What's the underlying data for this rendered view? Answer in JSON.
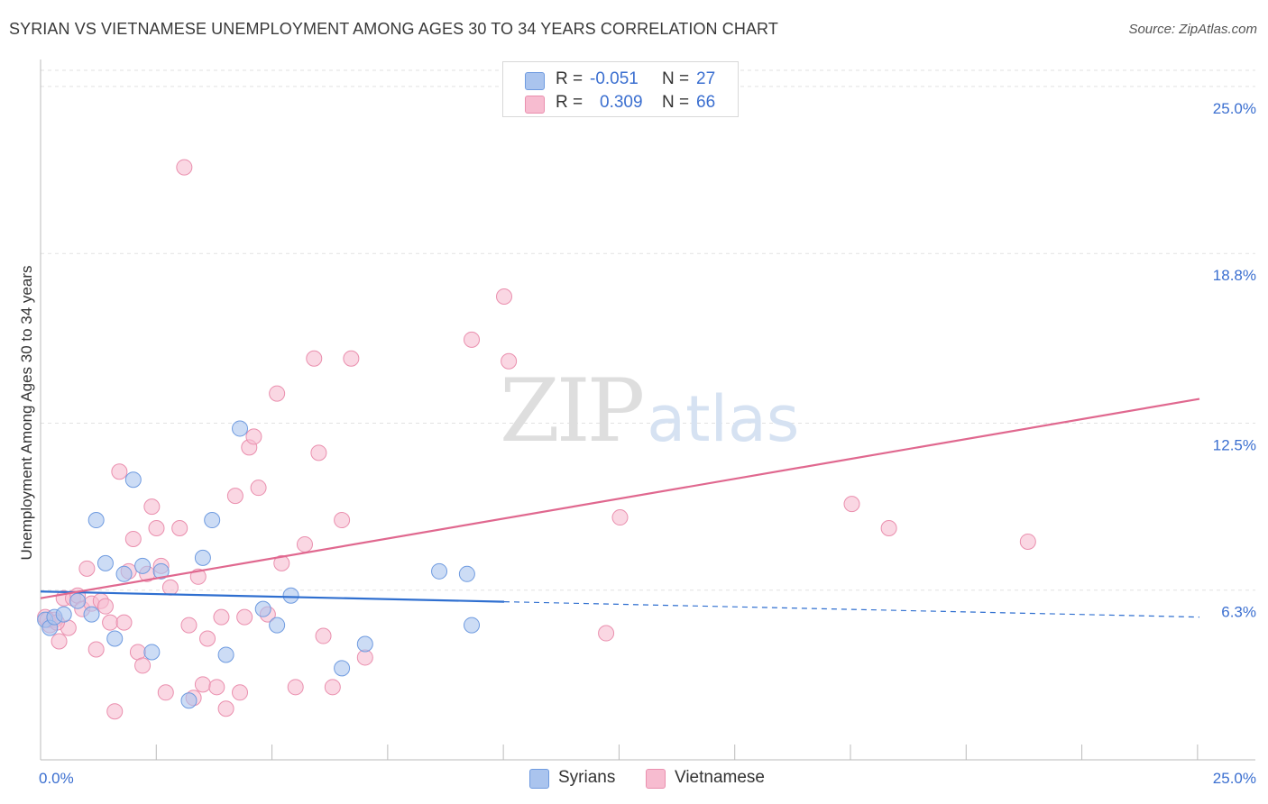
{
  "header": {
    "title": "SYRIAN VS VIETNAMESE UNEMPLOYMENT AMONG AGES 30 TO 34 YEARS CORRELATION CHART",
    "source": "Source: ZipAtlas.com"
  },
  "watermark": {
    "zip": "ZIP",
    "atlas": "atlas"
  },
  "legend": {
    "syrians": {
      "r_label": "R =",
      "r_value": "-0.051",
      "n_label": "N =",
      "n_value": "27"
    },
    "vietnamese": {
      "r_label": "R =",
      "r_value": "0.309",
      "n_label": "N =",
      "n_value": "66"
    }
  },
  "bottom_legend": {
    "syrians": "Syrians",
    "vietnamese": "Vietnamese"
  },
  "colors": {
    "syrians_fill": "#aac4ee",
    "syrians_stroke": "#6f9be0",
    "syrians_line": "#2f6fd0",
    "vietnamese_fill": "#f7bcd0",
    "vietnamese_stroke": "#ea8fae",
    "vietnamese_line": "#e0688f",
    "axis_value": "#3b6fd0",
    "grid": "#e2e2e2"
  },
  "chart_data": {
    "type": "scatter",
    "title": "SYRIAN VS VIETNAMESE UNEMPLOYMENT AMONG AGES 30 TO 34 YEARS CORRELATION CHART",
    "xlabel": "",
    "ylabel": "Unemployment Among Ages 30 to 34 years",
    "xlim": [
      0,
      25
    ],
    "ylim": [
      0,
      25.6
    ],
    "x_tick_labels": [
      "0.0%",
      "25.0%"
    ],
    "y_ticks": [
      6.3,
      12.5,
      18.8,
      25.0
    ],
    "y_tick_labels": [
      "6.3%",
      "12.5%",
      "18.8%",
      "25.0%"
    ],
    "grid": true,
    "series": [
      {
        "name": "Syrians",
        "r": -0.051,
        "n": 27,
        "points": [
          [
            0.1,
            5.2
          ],
          [
            0.2,
            4.9
          ],
          [
            0.3,
            5.3
          ],
          [
            0.5,
            5.4
          ],
          [
            0.8,
            5.9
          ],
          [
            1.1,
            5.4
          ],
          [
            1.2,
            8.9
          ],
          [
            1.4,
            7.3
          ],
          [
            1.6,
            4.5
          ],
          [
            1.8,
            6.9
          ],
          [
            2.0,
            10.4
          ],
          [
            2.2,
            7.2
          ],
          [
            2.4,
            4.0
          ],
          [
            2.6,
            7.0
          ],
          [
            3.2,
            2.2
          ],
          [
            3.5,
            7.5
          ],
          [
            3.7,
            8.9
          ],
          [
            4.0,
            3.9
          ],
          [
            4.3,
            12.3
          ],
          [
            4.8,
            5.6
          ],
          [
            5.1,
            5.0
          ],
          [
            5.4,
            6.1
          ],
          [
            6.5,
            3.4
          ],
          [
            7.0,
            4.3
          ],
          [
            8.6,
            7.0
          ],
          [
            9.2,
            6.9
          ],
          [
            9.3,
            5.0
          ]
        ],
        "trend": {
          "x0": 0,
          "y0": 6.25,
          "x1": 10,
          "y1": 5.87,
          "dash_to_x": 25,
          "dash_to_y": 5.3
        }
      },
      {
        "name": "Vietnamese",
        "r": 0.309,
        "n": 66,
        "points": [
          [
            0.1,
            5.3
          ],
          [
            0.2,
            5.0
          ],
          [
            0.3,
            5.2
          ],
          [
            0.4,
            4.4
          ],
          [
            0.5,
            6.0
          ],
          [
            0.6,
            4.9
          ],
          [
            0.7,
            6.0
          ],
          [
            0.8,
            6.1
          ],
          [
            0.9,
            5.6
          ],
          [
            1.0,
            7.1
          ],
          [
            1.1,
            5.8
          ],
          [
            1.2,
            4.1
          ],
          [
            1.3,
            5.9
          ],
          [
            1.4,
            5.7
          ],
          [
            1.5,
            5.1
          ],
          [
            1.6,
            1.8
          ],
          [
            1.7,
            10.7
          ],
          [
            1.8,
            5.1
          ],
          [
            1.9,
            7.0
          ],
          [
            2.0,
            8.2
          ],
          [
            2.1,
            4.0
          ],
          [
            2.2,
            3.5
          ],
          [
            2.3,
            6.9
          ],
          [
            2.4,
            9.4
          ],
          [
            2.5,
            8.6
          ],
          [
            2.6,
            7.2
          ],
          [
            2.7,
            2.5
          ],
          [
            2.8,
            6.4
          ],
          [
            3.0,
            8.6
          ],
          [
            3.1,
            22.0
          ],
          [
            3.2,
            5.0
          ],
          [
            3.3,
            2.3
          ],
          [
            3.4,
            6.8
          ],
          [
            3.5,
            2.8
          ],
          [
            3.6,
            4.5
          ],
          [
            3.8,
            2.7
          ],
          [
            3.9,
            5.3
          ],
          [
            4.0,
            1.9
          ],
          [
            4.2,
            9.8
          ],
          [
            4.3,
            2.5
          ],
          [
            4.4,
            5.3
          ],
          [
            4.5,
            11.6
          ],
          [
            4.6,
            12.0
          ],
          [
            4.7,
            10.1
          ],
          [
            4.9,
            5.4
          ],
          [
            5.1,
            13.6
          ],
          [
            5.2,
            7.3
          ],
          [
            5.5,
            2.7
          ],
          [
            5.7,
            8.0
          ],
          [
            5.9,
            14.9
          ],
          [
            6.0,
            11.4
          ],
          [
            6.1,
            4.6
          ],
          [
            6.3,
            2.7
          ],
          [
            6.5,
            8.9
          ],
          [
            6.7,
            14.9
          ],
          [
            7.0,
            3.8
          ],
          [
            9.3,
            15.6
          ],
          [
            10.0,
            17.2
          ],
          [
            10.1,
            14.8
          ],
          [
            12.2,
            4.7
          ],
          [
            12.5,
            9.0
          ],
          [
            17.5,
            9.5
          ],
          [
            18.3,
            8.6
          ],
          [
            21.3,
            8.1
          ],
          [
            0.15,
            5.2
          ],
          [
            0.35,
            5.1
          ]
        ],
        "trend": {
          "x0": 0,
          "y0": 6.0,
          "x1": 25,
          "y1": 13.4
        }
      }
    ]
  }
}
